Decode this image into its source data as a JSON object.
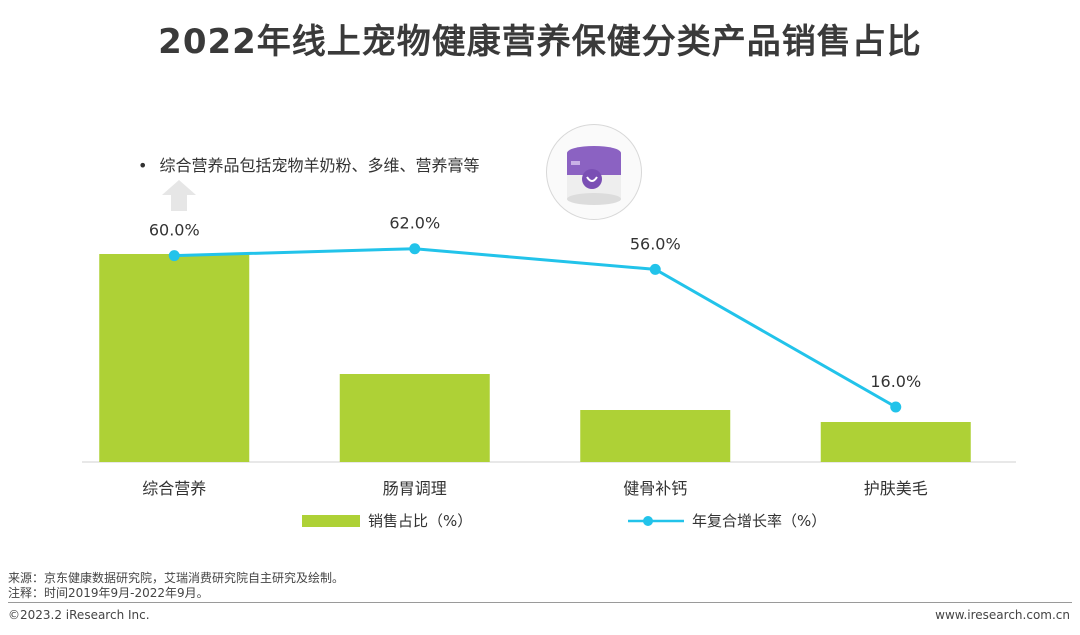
{
  "title": "2022年线上宠物健康营养保健分类产品销售占比",
  "note": {
    "bullet": "•",
    "text": "综合营养品包括宠物羊奶粉、多维、营养膏等"
  },
  "chart_data": {
    "type": "bar",
    "categories": [
      "综合营养",
      "肠胃调理",
      "健骨补钙",
      "护肤美毛"
    ],
    "series": [
      {
        "name": "销售占比（%）",
        "type": "bar",
        "values": [
          52,
          22,
          13,
          10
        ],
        "color": "#aed136"
      },
      {
        "name": "年复合增长率（%）",
        "type": "line",
        "values": [
          60.0,
          62.0,
          56.0,
          16.0
        ],
        "labels": [
          "60.0%",
          "62.0%",
          "56.0%",
          "16.0%"
        ],
        "color": "#22c3ea"
      }
    ],
    "bar_ylim": [
      0,
      100
    ],
    "line_ylim": [
      0,
      100
    ],
    "legend_position": "bottom"
  },
  "footer": {
    "source": "来源：京东健康数据研究院，艾瑞消费研究院自主研究及绘制。",
    "note": "注释：时间2019年9月-2022年9月。",
    "copyright": "©2023.2 iResearch Inc.",
    "website": "www.iresearch.com.cn"
  },
  "colors": {
    "bar": "#aed136",
    "line": "#22c3ea",
    "axis": "#d0d0d0"
  }
}
